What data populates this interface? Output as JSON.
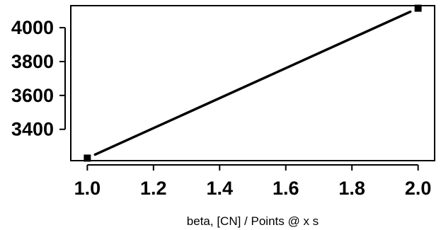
{
  "chart_data": {
    "type": "line",
    "title": "",
    "xlabel": "beta, [CN] / Points @ x s",
    "ylabel": "",
    "xlim": [
      0.95,
      2.05
    ],
    "ylim": [
      3215,
      4130
    ],
    "x_ticks": [
      "1.0",
      "1.2",
      "1.4",
      "1.6",
      "1.8",
      "2.0"
    ],
    "y_ticks": [
      "3400",
      "3600",
      "3800",
      "4000"
    ],
    "grid": false,
    "legend": "none",
    "series": [
      {
        "marker": "square",
        "color": "#000000",
        "x": [
          1.0,
          2.0
        ],
        "y": [
          3230,
          4115
        ]
      }
    ]
  }
}
